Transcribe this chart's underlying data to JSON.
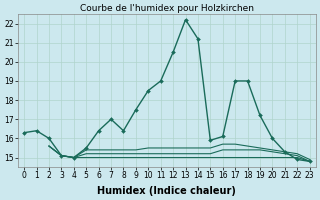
{
  "title": "Courbe de l'humidex pour Holzkirchen",
  "xlabel": "Humidex (Indice chaleur)",
  "background_color": "#cce8ee",
  "grid_color": "#b0d4cc",
  "line_color": "#1a6b5a",
  "xlim": [
    -0.5,
    23.5
  ],
  "ylim": [
    14.5,
    22.5
  ],
  "yticks": [
    15,
    16,
    17,
    18,
    19,
    20,
    21,
    22
  ],
  "xticks": [
    0,
    1,
    2,
    3,
    4,
    5,
    6,
    7,
    8,
    9,
    10,
    11,
    12,
    13,
    14,
    15,
    16,
    17,
    18,
    19,
    20,
    21,
    22,
    23
  ],
  "xtick_labels": [
    "0",
    "1",
    "2",
    "3",
    "4",
    "5",
    "6",
    "7",
    "8",
    "9",
    "10",
    "11",
    "12",
    "13",
    "14",
    "15",
    "16",
    "17",
    "18",
    "19",
    "20",
    "21",
    "22",
    "23"
  ],
  "main_line": {
    "x": [
      0,
      1,
      2,
      3,
      4,
      5,
      6,
      7,
      8,
      9,
      10,
      11,
      12,
      13,
      14,
      15,
      16,
      17,
      18,
      19,
      20,
      21,
      22,
      23
    ],
    "y": [
      16.3,
      16.4,
      16.0,
      15.1,
      15.0,
      15.5,
      16.4,
      17.0,
      16.4,
      17.5,
      18.5,
      19.0,
      20.5,
      22.2,
      21.2,
      15.9,
      16.1,
      19.0,
      19.0,
      17.2,
      16.0,
      15.3,
      14.9,
      14.8
    ]
  },
  "flat_lines": [
    {
      "x": [
        2,
        3,
        4,
        5,
        6,
        7,
        8,
        9,
        10,
        11,
        12,
        13,
        14,
        15,
        16,
        17,
        18,
        19,
        20,
        21,
        22,
        23
      ],
      "y": [
        15.6,
        15.1,
        15.0,
        15.0,
        15.0,
        15.0,
        15.0,
        15.0,
        15.0,
        15.0,
        15.0,
        15.0,
        15.0,
        15.0,
        15.0,
        15.0,
        15.0,
        15.0,
        15.0,
        15.0,
        15.0,
        14.8
      ]
    },
    {
      "x": [
        2,
        3,
        4,
        5,
        6,
        7,
        8,
        9,
        10,
        11,
        12,
        13,
        14,
        15,
        16,
        17,
        18,
        19,
        20,
        21,
        22,
        23
      ],
      "y": [
        15.6,
        15.1,
        15.0,
        15.2,
        15.2,
        15.2,
        15.2,
        15.2,
        15.2,
        15.2,
        15.2,
        15.2,
        15.2,
        15.2,
        15.4,
        15.4,
        15.4,
        15.4,
        15.3,
        15.2,
        15.1,
        14.8
      ]
    },
    {
      "x": [
        2,
        3,
        4,
        5,
        6,
        7,
        8,
        9,
        10,
        11,
        12,
        13,
        14,
        15,
        16,
        17,
        18,
        19,
        20,
        21,
        22,
        23
      ],
      "y": [
        15.6,
        15.1,
        15.0,
        15.4,
        15.4,
        15.4,
        15.4,
        15.4,
        15.5,
        15.5,
        15.5,
        15.5,
        15.5,
        15.5,
        15.7,
        15.7,
        15.6,
        15.5,
        15.4,
        15.3,
        15.2,
        14.9
      ]
    }
  ],
  "title_fontsize": 6.5,
  "tick_fontsize": 5.5,
  "xlabel_fontsize": 7
}
